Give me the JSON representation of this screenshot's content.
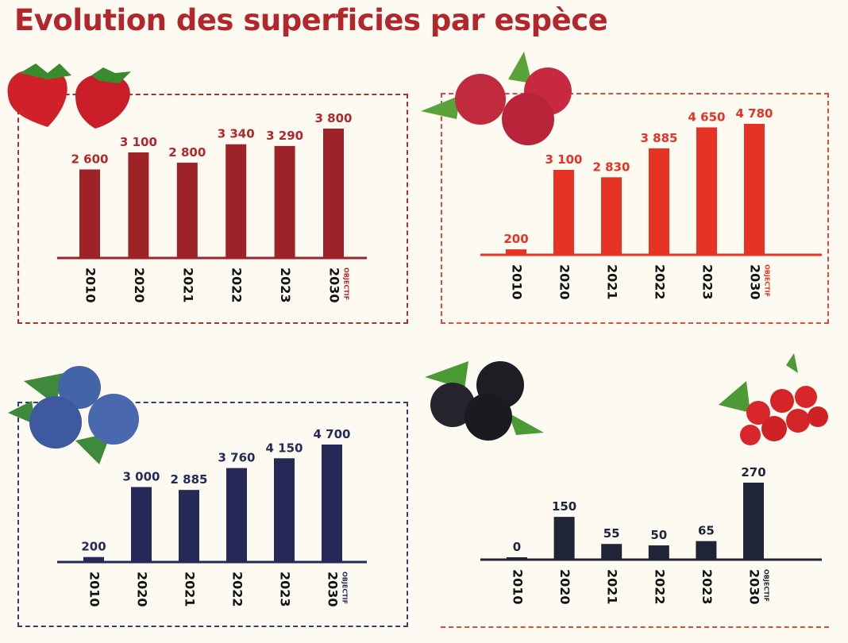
{
  "title": "Evolution des superficies par espèce",
  "chart_data": [
    {
      "type": "bar",
      "fruit": "strawberry-icon",
      "categories": [
        "2010",
        "2020",
        "2021",
        "2022",
        "2023",
        "2030"
      ],
      "values": [
        2600,
        3100,
        2800,
        3340,
        3290,
        3800
      ],
      "value_labels": [
        "2 600",
        "3 100",
        "2 800",
        "3 340",
        "3 290",
        "3 800"
      ],
      "annotation": "OBJECTIF",
      "color": "#9e2328",
      "label_color": "#b3272c",
      "border": "#a8302f"
    },
    {
      "type": "bar",
      "fruit": "raspberry-icon",
      "categories": [
        "2010",
        "2020",
        "2021",
        "2022",
        "2023",
        "2030"
      ],
      "values": [
        200,
        3100,
        2830,
        3885,
        4650,
        4780
      ],
      "value_labels": [
        "200",
        "3 100",
        "2 830",
        "3 885",
        "4 650",
        "4 780"
      ],
      "annotation": "OBJECTIF",
      "color": "#e63323",
      "label_color": "#e63323",
      "border": "#e5483a"
    },
    {
      "type": "bar",
      "fruit": "blueberry-icon",
      "categories": [
        "2010",
        "2020",
        "2021",
        "2022",
        "2023",
        "2030"
      ],
      "values": [
        200,
        3000,
        2885,
        3760,
        4150,
        4700
      ],
      "value_labels": [
        "200",
        "3 000",
        "2 885",
        "3 760",
        "4 150",
        "4 700"
      ],
      "annotation": "OBJECTIF",
      "color": "#252a59",
      "label_color": "#252a59",
      "border": "#3a3d6a"
    },
    {
      "type": "bar",
      "fruit": "blackberry-redcurrant-icon",
      "categories": [
        "2010",
        "2020",
        "2021",
        "2022",
        "2023",
        "2030"
      ],
      "values": [
        0,
        150,
        55,
        50,
        65,
        270
      ],
      "value_labels": [
        "0",
        "150",
        "55",
        "50",
        "65",
        "270"
      ],
      "annotation": "OBJECTIF",
      "color": "#1f2437",
      "label_color": "#1f2437",
      "border": "#e5483a"
    }
  ]
}
